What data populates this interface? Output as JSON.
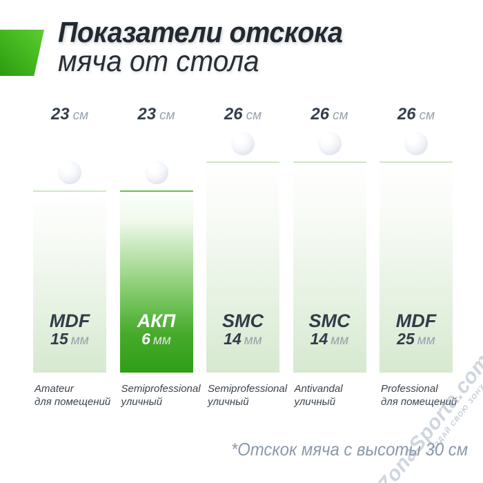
{
  "title": {
    "line1": "Показатели отскока",
    "line2": "мяча от стола"
  },
  "units": {
    "bounce": "см",
    "thickness": "мм"
  },
  "bars": [
    {
      "bounce": 23,
      "material": "MDF",
      "thickness": 15,
      "type": "Amateur",
      "usage": "для помещений",
      "highlighted": false
    },
    {
      "bounce": 23,
      "material": "АКП",
      "thickness": 6,
      "type": "Semiprofessional",
      "usage": "уличный",
      "highlighted": true
    },
    {
      "bounce": 26,
      "material": "SMC",
      "thickness": 14,
      "type": "Semiprofessional",
      "usage": "уличный",
      "highlighted": false
    },
    {
      "bounce": 26,
      "material": "SMC",
      "thickness": 14,
      "type": "Antivandal",
      "usage": "уличный",
      "highlighted": false
    },
    {
      "bounce": 26,
      "material": "MDF",
      "thickness": 25,
      "type": "Professional",
      "usage": "для помещений",
      "highlighted": false
    }
  ],
  "footnote": "*Отскок мяча с высоты 30 см",
  "watermark": {
    "brand": "ZonaSporta.com",
    "slogan": "СОЗДАЙ СВОЮ ЗОНУ СПОРТА"
  },
  "colors": {
    "accent_green_light": "#5ecb31",
    "accent_green_dark": "#2d9a10",
    "bar_highlight_bottom": "#2f9e16",
    "bar_normal_bottom": "#d6e9d0",
    "text_dark": "#313c49",
    "unit_gray": "#98a2ac",
    "footnote_gray": "#8a99ab",
    "watermark_gray": "#94a4b3"
  },
  "chart_data": {
    "type": "bar",
    "title": "Показатели отскока мяча от стола",
    "note": "*Отскок мяча с высоты 30 см",
    "value_unit": "см",
    "categories": [
      "Amateur (для помещений)",
      "Semiprofessional (уличный)",
      "Semiprofessional (уличный)",
      "Antivandal (уличный)",
      "Professional (для помещений)"
    ],
    "values": [
      23,
      23,
      26,
      26,
      26
    ],
    "bar_labels": [
      "MDF 15 мм",
      "АКП 6 мм",
      "SMC 14 мм",
      "SMC 14 мм",
      "MDF 25 мм"
    ],
    "highlighted_index": 1,
    "legend": "none",
    "grid": false
  }
}
